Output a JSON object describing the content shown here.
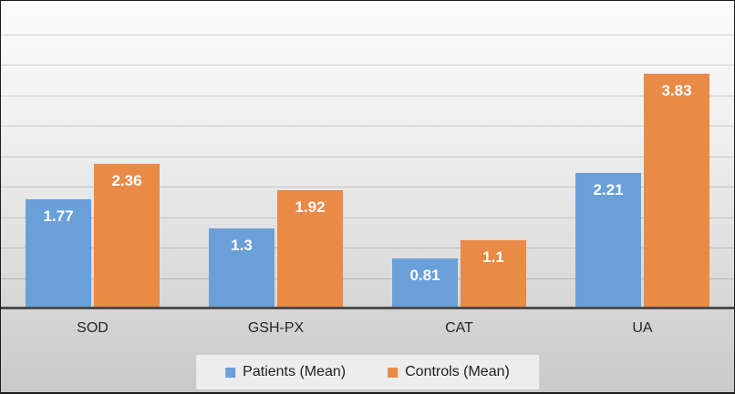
{
  "chart_data": {
    "type": "bar",
    "title": "",
    "xlabel": "",
    "ylabel": "",
    "categories": [
      "SOD",
      "GSH-PX",
      "CAT",
      "UA"
    ],
    "series": [
      {
        "name": "Patients (Mean)",
        "color": "#6aa0d8",
        "values": [
          1.77,
          1.3,
          0.81,
          2.21
        ]
      },
      {
        "name": "Controls (Mean)",
        "color": "#ea8a47",
        "values": [
          2.36,
          1.92,
          1.1,
          3.83
        ]
      }
    ],
    "ylim": [
      0,
      4.5
    ],
    "gridline_step": 0.5,
    "grid": true,
    "y_axis_labels_visible": false,
    "legend_position": "bottom",
    "data_label_color": "#ffffff",
    "axis_line_color": "#4d4d4d",
    "gridline_color": "#9a9a9a",
    "category_label_color": "#262626",
    "legend_text_color": "#1f1f1f",
    "legend_panel_color": "#f0f0f0",
    "background_top_color": "#fcfcfc",
    "background_bottom_color": "#c9c9c9",
    "border_color": "#1c1c1c"
  }
}
